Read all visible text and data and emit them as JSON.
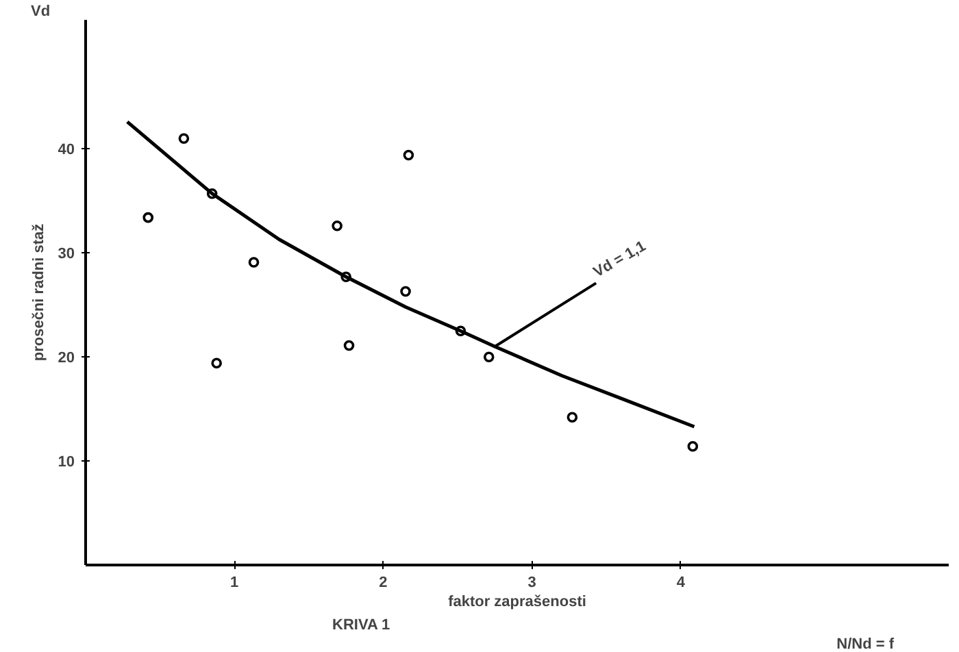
{
  "chart_data": {
    "type": "scatter",
    "xlabel": "faktor zaprašenosti",
    "ylabel": "prosečni radni staž",
    "xlim": [
      0,
      5.8
    ],
    "ylim": [
      0,
      52.4
    ],
    "xticks": [
      1,
      2,
      3,
      4
    ],
    "yticks": [
      10,
      20,
      30,
      40
    ],
    "grid": false,
    "marker": "circle",
    "series": [
      {
        "color": "#000000",
        "x": [
          0.42,
          0.66,
          0.85,
          0.88,
          1.13,
          1.69,
          1.75,
          1.77,
          2.15,
          2.17,
          2.52,
          2.71,
          3.27,
          4.08
        ],
        "values": [
          33.4,
          41.0,
          35.7,
          19.4,
          29.1,
          32.6,
          27.7,
          21.1,
          26.3,
          39.4,
          22.5,
          20.0,
          14.2,
          11.4
        ]
      },
      {
        "type": "line",
        "color": "#000000",
        "line_style": "solid",
        "marker": "none",
        "x": [
          0.28,
          0.85,
          1.3,
          1.75,
          2.15,
          2.52,
          2.75,
          3.2,
          3.6,
          4.09
        ],
        "values": [
          42.6,
          35.7,
          31.3,
          27.7,
          24.8,
          22.5,
          21.0,
          18.2,
          16.0,
          13.3
        ]
      }
    ],
    "annotations": [
      "KRIVA 1",
      "N/Nd = f",
      "Vd",
      {
        "text": "Vd = 1,1",
        "x": 2.75,
        "y": 21.0
      }
    ]
  }
}
